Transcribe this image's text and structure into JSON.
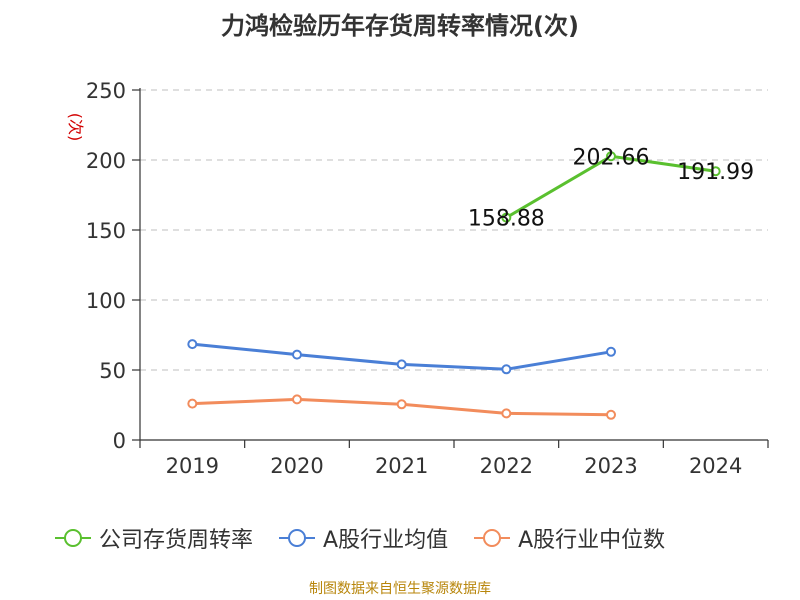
{
  "title": "力鸿检验历年存货周转率情况(次)",
  "source_note": "制图数据来自恒生聚源数据库",
  "colors": {
    "company": "#5ac02f",
    "industry_avg": "#4a7fd6",
    "industry_median": "#f28c5c",
    "ylabel": "#d20000"
  },
  "chart_data": {
    "type": "line",
    "title": "力鸿检验历年存货周转率情况(次)",
    "xlabel": "",
    "ylabel": "(次)",
    "categories": [
      "2019",
      "2020",
      "2021",
      "2022",
      "2023",
      "2024"
    ],
    "ylim": [
      0,
      250
    ],
    "yticks": [
      0,
      50,
      100,
      150,
      200,
      250
    ],
    "grid": true,
    "legend_position": "bottom",
    "series": [
      {
        "name": "公司存货周转率",
        "color": "#5ac02f",
        "values": [
          null,
          null,
          null,
          158.88,
          202.66,
          191.99
        ],
        "data_labels": [
          "",
          "",
          "",
          "158.88",
          "202.66",
          "191.99"
        ]
      },
      {
        "name": "A股行业均值",
        "color": "#4a7fd6",
        "values": [
          68.5,
          61,
          54,
          50.5,
          63,
          null
        ]
      },
      {
        "name": "A股行业中位数",
        "color": "#f28c5c",
        "values": [
          26,
          29,
          25.5,
          19,
          18,
          null
        ]
      }
    ]
  }
}
